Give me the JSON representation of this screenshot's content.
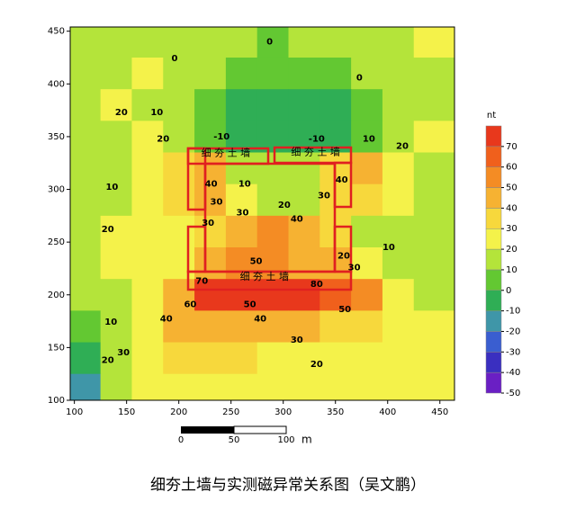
{
  "chart_data": {
    "type": "heatmap",
    "title": "细夯土墙与实测磁异常关系图（吴文鹏）",
    "xlim": [
      96,
      464
    ],
    "ylim": [
      100,
      454
    ],
    "xticks": [
      100,
      150,
      200,
      250,
      300,
      350,
      400,
      450
    ],
    "yticks": [
      100,
      150,
      200,
      250,
      300,
      350,
      400,
      450
    ],
    "x": [
      110,
      140,
      170,
      200,
      230,
      260,
      290,
      320,
      350,
      380,
      410,
      440
    ],
    "y": [
      440,
      410,
      380,
      350,
      320,
      290,
      260,
      230,
      200,
      170,
      140,
      110
    ],
    "values": [
      [
        10,
        15,
        10,
        15,
        15,
        10,
        5,
        10,
        15,
        10,
        15,
        20
      ],
      [
        10,
        15,
        20,
        15,
        10,
        5,
        0,
        5,
        0,
        10,
        15,
        15
      ],
      [
        10,
        20,
        15,
        10,
        0,
        -5,
        -5,
        -5,
        -5,
        0,
        10,
        15
      ],
      [
        10,
        10,
        20,
        15,
        5,
        -10,
        -10,
        -10,
        -5,
        5,
        15,
        20
      ],
      [
        15,
        15,
        20,
        30,
        40,
        15,
        10,
        15,
        30,
        40,
        20,
        15
      ],
      [
        10,
        15,
        20,
        30,
        40,
        20,
        10,
        15,
        30,
        35,
        20,
        15
      ],
      [
        15,
        20,
        20,
        20,
        30,
        45,
        50,
        40,
        30,
        15,
        10,
        15
      ],
      [
        15,
        20,
        20,
        25,
        40,
        50,
        50,
        45,
        40,
        25,
        15,
        15
      ],
      [
        10,
        15,
        20,
        45,
        70,
        70,
        70,
        70,
        65,
        50,
        20,
        15
      ],
      [
        5,
        15,
        25,
        40,
        45,
        45,
        40,
        40,
        35,
        35,
        25,
        20
      ],
      [
        -10,
        15,
        25,
        30,
        30,
        30,
        25,
        25,
        20,
        25,
        25,
        20
      ],
      [
        -20,
        10,
        20,
        20,
        20,
        20,
        20,
        20,
        20,
        20,
        20,
        20
      ]
    ],
    "contour_labels": [
      {
        "text": "0",
        "x": 196,
        "y": 424
      },
      {
        "text": "0",
        "x": 287,
        "y": 440
      },
      {
        "text": "0",
        "x": 373,
        "y": 406
      },
      {
        "text": "10",
        "x": 179,
        "y": 373
      },
      {
        "text": "20",
        "x": 145,
        "y": 373
      },
      {
        "text": "20",
        "x": 185,
        "y": 348
      },
      {
        "text": "10",
        "x": 382,
        "y": 348
      },
      {
        "text": "20",
        "x": 414,
        "y": 341
      },
      {
        "text": "-10",
        "x": 241,
        "y": 350
      },
      {
        "text": "-10",
        "x": 332,
        "y": 348
      },
      {
        "text": "10",
        "x": 136,
        "y": 302
      },
      {
        "text": "20",
        "x": 132,
        "y": 262
      },
      {
        "text": "40",
        "x": 231,
        "y": 305
      },
      {
        "text": "30",
        "x": 236,
        "y": 288
      },
      {
        "text": "10",
        "x": 263,
        "y": 305
      },
      {
        "text": "30",
        "x": 261,
        "y": 278
      },
      {
        "text": "20",
        "x": 301,
        "y": 285
      },
      {
        "text": "40",
        "x": 313,
        "y": 272
      },
      {
        "text": "30",
        "x": 339,
        "y": 294
      },
      {
        "text": "40",
        "x": 356,
        "y": 309
      },
      {
        "text": "30",
        "x": 228,
        "y": 268
      },
      {
        "text": "50",
        "x": 274,
        "y": 232
      },
      {
        "text": "20",
        "x": 358,
        "y": 237
      },
      {
        "text": "30",
        "x": 368,
        "y": 226
      },
      {
        "text": "10",
        "x": 401,
        "y": 245
      },
      {
        "text": "70",
        "x": 222,
        "y": 213
      },
      {
        "text": "60",
        "x": 211,
        "y": 191
      },
      {
        "text": "50",
        "x": 268,
        "y": 191
      },
      {
        "text": "40",
        "x": 278,
        "y": 177
      },
      {
        "text": "80",
        "x": 332,
        "y": 210
      },
      {
        "text": "50",
        "x": 359,
        "y": 186
      },
      {
        "text": "40",
        "x": 188,
        "y": 177
      },
      {
        "text": "10",
        "x": 135,
        "y": 174
      },
      {
        "text": "30",
        "x": 313,
        "y": 157
      },
      {
        "text": "20",
        "x": 332,
        "y": 134
      },
      {
        "text": "30",
        "x": 147,
        "y": 145
      },
      {
        "text": "20",
        "x": 132,
        "y": 138
      }
    ],
    "wall_labels": [
      {
        "text": "细 夯 土 墙",
        "x": 245,
        "y": 334
      },
      {
        "text": "细 夯 土 墙",
        "x": 331,
        "y": 335
      },
      {
        "text": "细 夯 土 墙",
        "x": 282,
        "y": 217
      }
    ],
    "colorbar": {
      "title": "nt",
      "levels": [
        -50,
        -40,
        -30,
        -20,
        -10,
        0,
        10,
        20,
        30,
        40,
        50,
        60,
        70,
        80
      ],
      "colors": [
        "#6a1fc4",
        "#3a2fc0",
        "#3a5ed0",
        "#3f96a8",
        "#2fae55",
        "#63c832",
        "#b4e43a",
        "#f4f24a",
        "#f7d83c",
        "#f6b232",
        "#f48c24",
        "#f0601c",
        "#e8381c"
      ],
      "ticks": [
        70,
        60,
        50,
        40,
        30,
        20,
        10,
        0,
        -10,
        -20,
        -30,
        -40,
        -50
      ]
    },
    "scale_bar": {
      "labels": [
        "0",
        "50",
        "100"
      ],
      "unit": "m"
    }
  }
}
